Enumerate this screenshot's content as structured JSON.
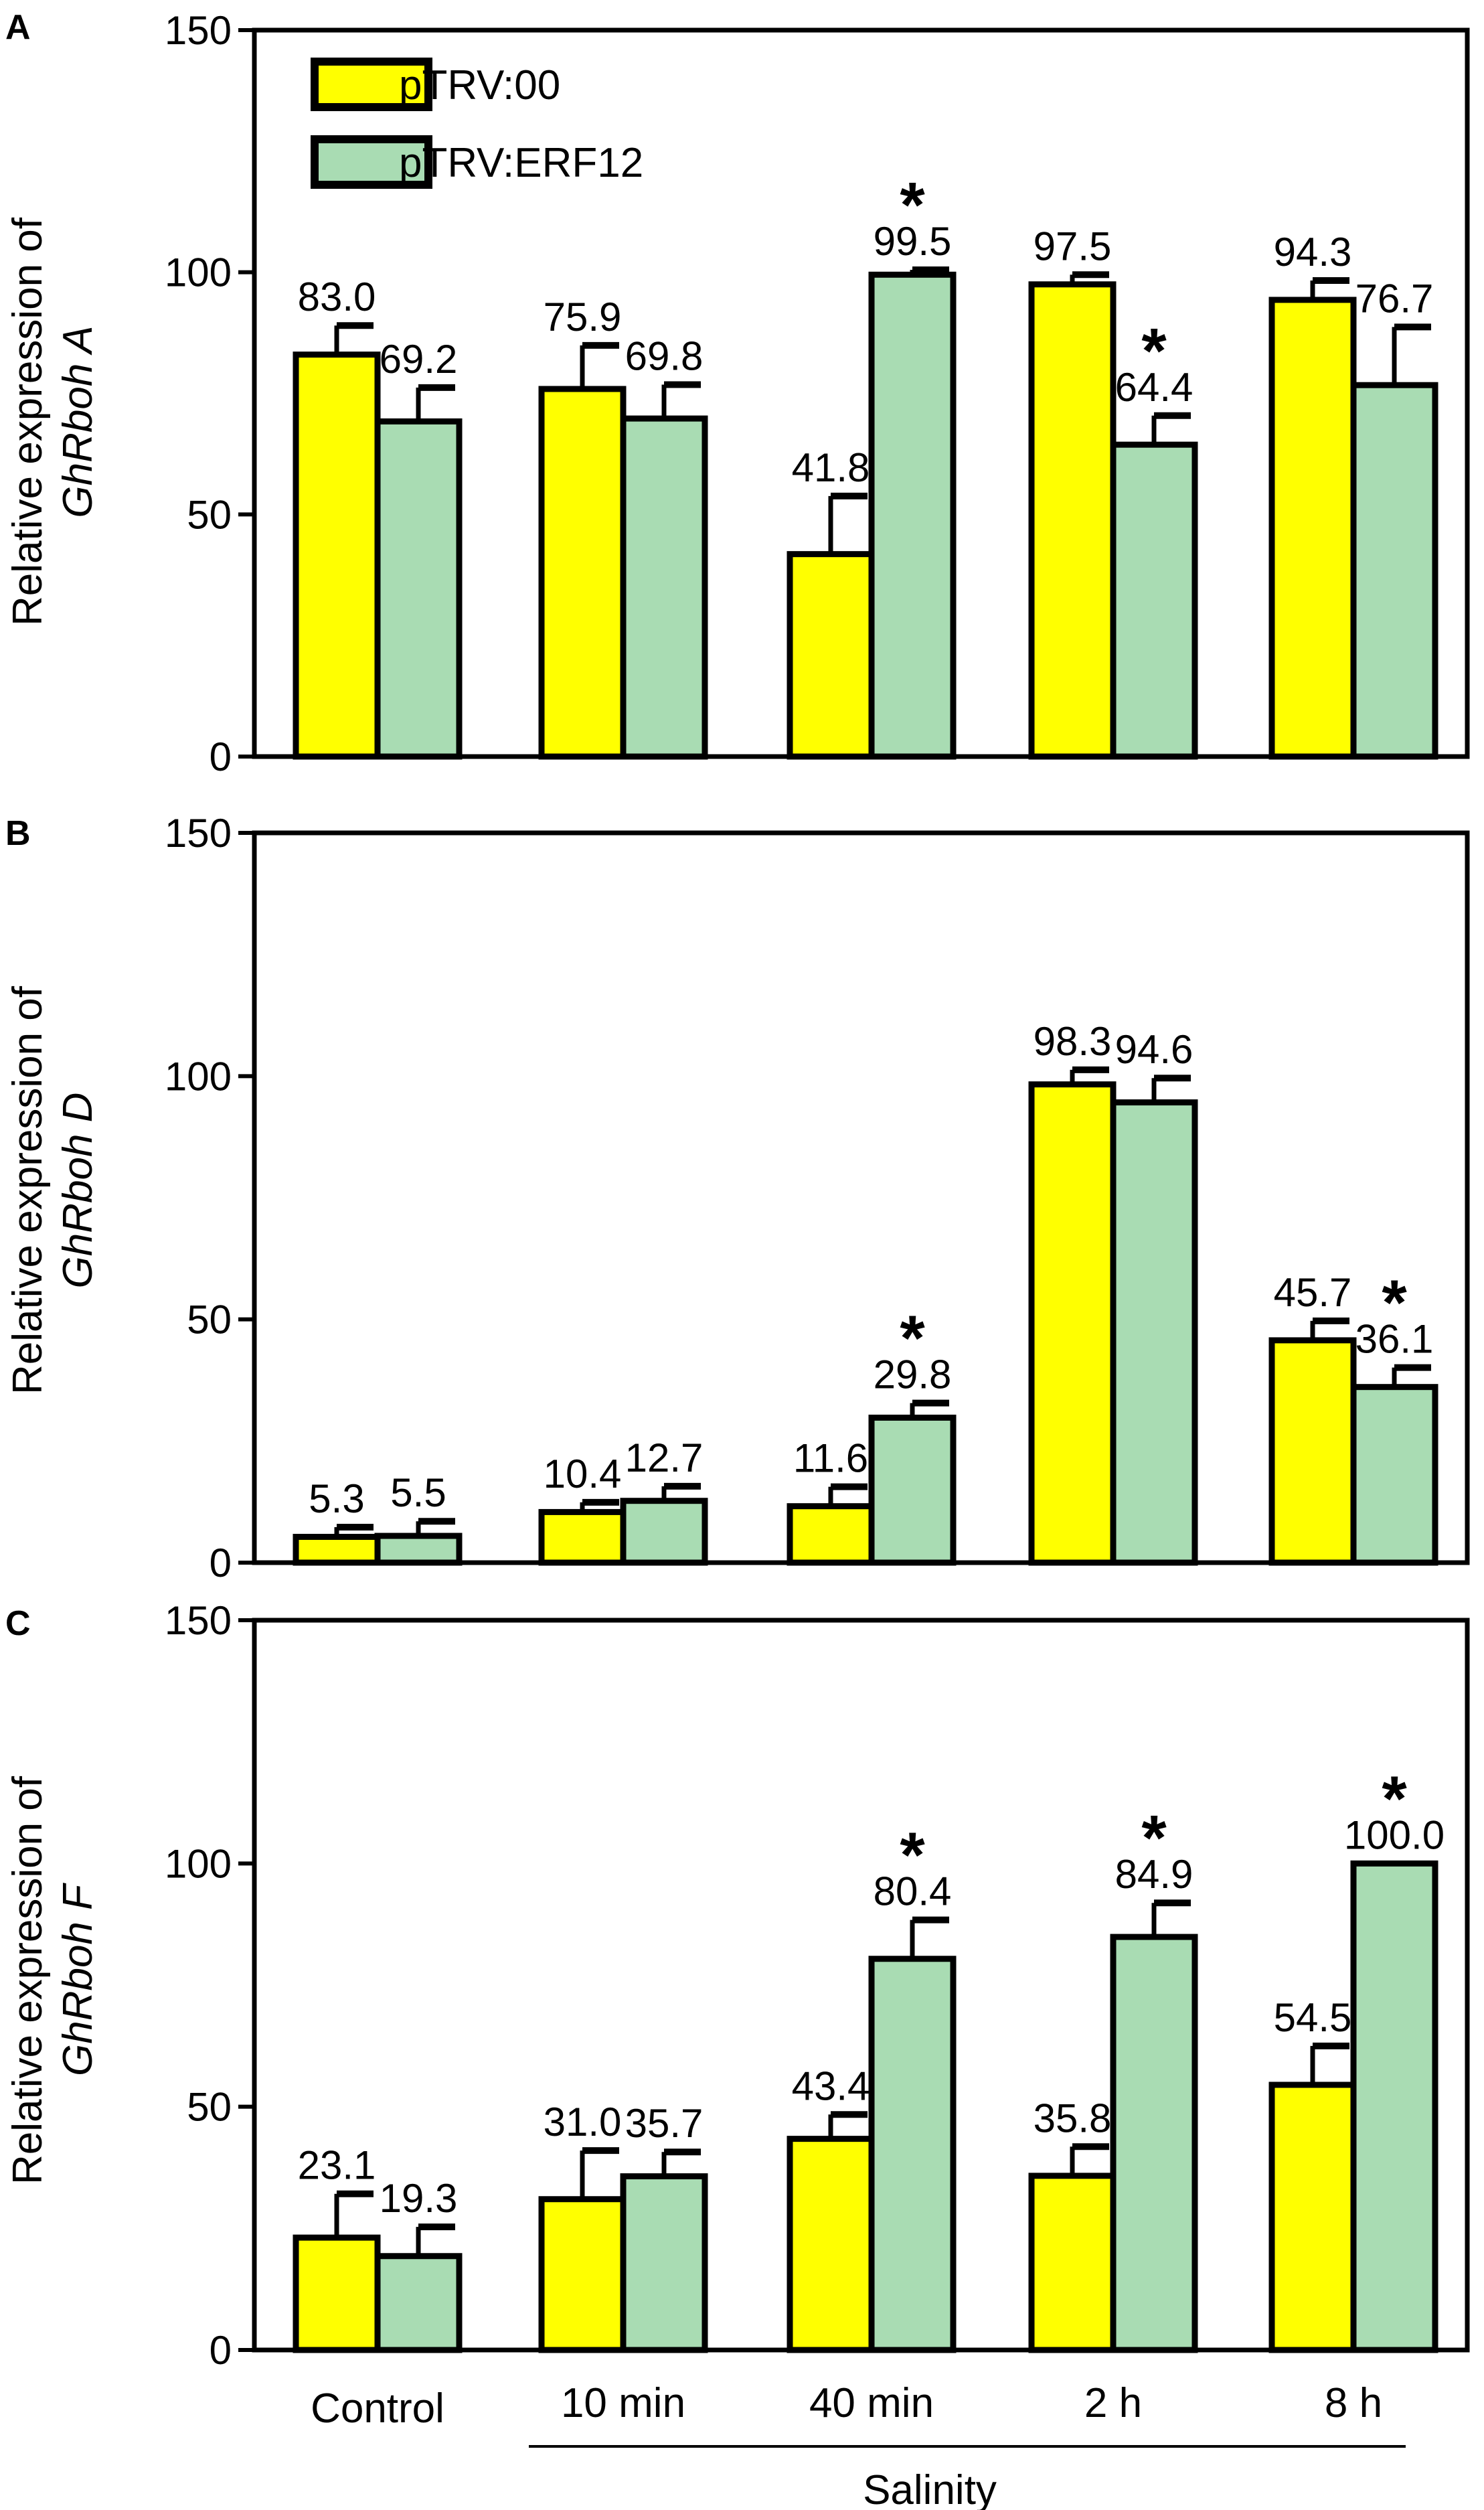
{
  "colors": {
    "series0": "#ffff00",
    "series1": "#a9dcb3",
    "stroke": "#000000"
  },
  "legend": [
    "pTRV:00",
    "pTRV:ERF12"
  ],
  "xaxis": {
    "categories": [
      "Control",
      "10 min",
      "40 min",
      "2 h",
      "8 h"
    ],
    "group_label": "Salinity"
  },
  "chart_data": [
    {
      "type": "bar",
      "panel": "A",
      "ylabel_prefix": "Relative expression of",
      "ylabel_gene": "GhRboh A",
      "ylim": [
        0,
        150
      ],
      "yticks": [
        0,
        50,
        100,
        150
      ],
      "categories": [
        "Control",
        "10 min",
        "40 min",
        "2 h",
        "8 h"
      ],
      "series": [
        {
          "name": "pTRV:00",
          "values": [
            83.0,
            75.9,
            41.8,
            97.5,
            94.3
          ],
          "labels": [
            "83.0",
            "75.9",
            "41.8",
            "97.5",
            "94.3"
          ],
          "errors": [
            6,
            9,
            12,
            2,
            4
          ],
          "significant": [
            false,
            false,
            false,
            false,
            false
          ]
        },
        {
          "name": "pTRV:ERF12",
          "values": [
            69.2,
            69.8,
            99.5,
            64.4,
            76.7
          ],
          "labels": [
            "69.2",
            "69.8",
            "99.5",
            "64.4",
            "76.7"
          ],
          "errors": [
            7,
            7,
            1,
            6,
            12
          ],
          "significant": [
            false,
            false,
            true,
            true,
            false
          ]
        }
      ]
    },
    {
      "type": "bar",
      "panel": "B",
      "ylabel_prefix": "Relative expression of",
      "ylabel_gene": "GhRboh D",
      "ylim": [
        0,
        150
      ],
      "yticks": [
        0,
        50,
        100,
        150
      ],
      "categories": [
        "Control",
        "10 min",
        "40 min",
        "2 h",
        "8 h"
      ],
      "series": [
        {
          "name": "pTRV:00",
          "values": [
            5.3,
            10.4,
            11.6,
            98.3,
            45.7
          ],
          "labels": [
            "5.3",
            "10.4",
            "11.6",
            "98.3",
            "45.7"
          ],
          "errors": [
            2,
            2,
            4,
            3,
            4
          ],
          "significant": [
            false,
            false,
            false,
            false,
            false
          ]
        },
        {
          "name": "pTRV:ERF12",
          "values": [
            5.5,
            12.7,
            29.8,
            94.6,
            36.1
          ],
          "labels": [
            "5.5",
            "12.7",
            "29.8",
            "94.6",
            "36.1"
          ],
          "errors": [
            3,
            3,
            3,
            5,
            4
          ],
          "significant": [
            false,
            false,
            true,
            false,
            true
          ]
        }
      ]
    },
    {
      "type": "bar",
      "panel": "C",
      "ylabel_prefix": "Relative expression of",
      "ylabel_gene": "GhRboh F",
      "ylim": [
        0,
        150
      ],
      "yticks": [
        0,
        50,
        100,
        150
      ],
      "categories": [
        "Control",
        "10 min",
        "40 min",
        "2 h",
        "8 h"
      ],
      "series": [
        {
          "name": "pTRV:00",
          "values": [
            23.1,
            31.0,
            43.4,
            35.8,
            54.5
          ],
          "labels": [
            "23.1",
            "31.0",
            "43.4",
            "35.8",
            "54.5"
          ],
          "errors": [
            9,
            10,
            5,
            6,
            8
          ],
          "significant": [
            false,
            false,
            false,
            false,
            false
          ]
        },
        {
          "name": "pTRV:ERF12",
          "values": [
            19.3,
            35.7,
            80.4,
            84.9,
            100.0
          ],
          "labels": [
            "19.3",
            "35.7",
            "80.4",
            "84.9",
            "100.0"
          ],
          "errors": [
            6,
            5,
            8,
            7,
            0
          ],
          "significant": [
            false,
            false,
            true,
            true,
            true
          ]
        }
      ]
    }
  ]
}
